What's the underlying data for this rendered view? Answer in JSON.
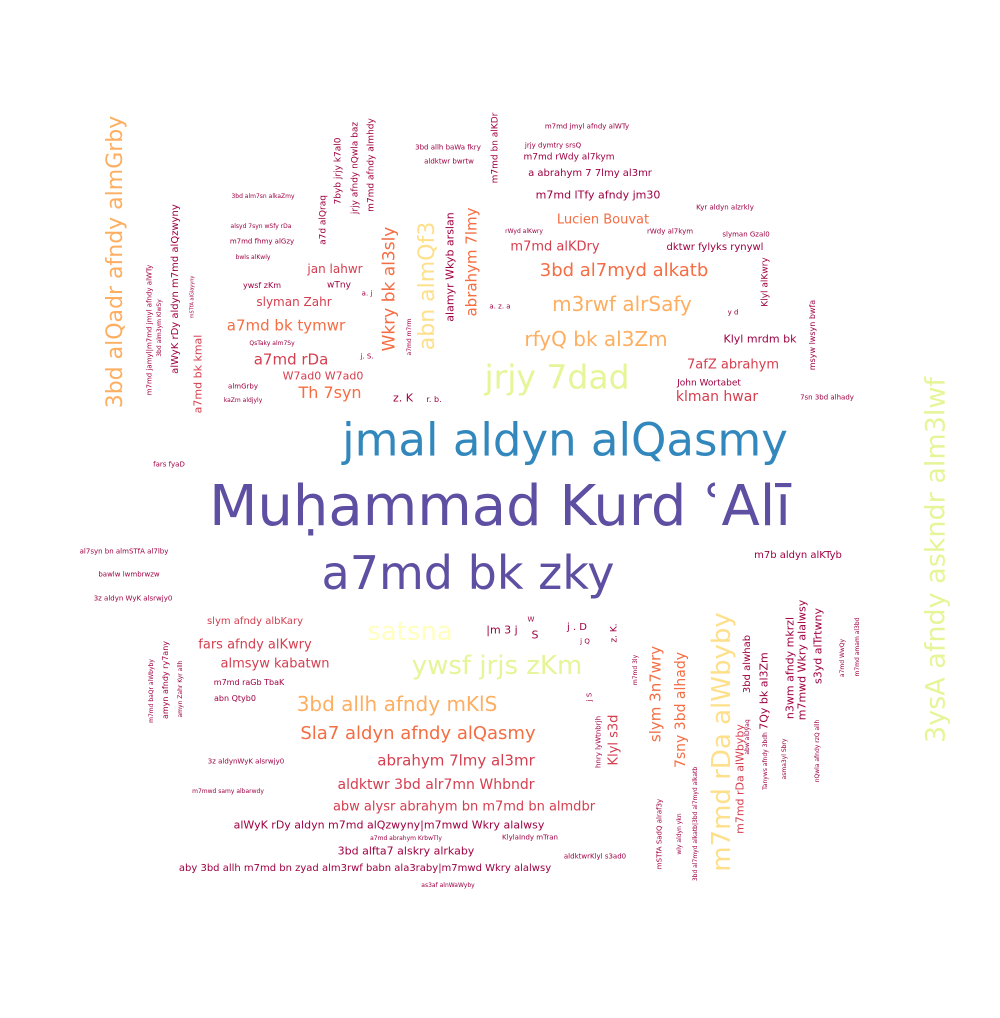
{
  "palette": {
    "dark_maroon": "#9e0142",
    "crimson": "#d53e4f",
    "orange_red": "#f46d43",
    "orange": "#fdae61",
    "light_yellow": "#fee08b",
    "pale_yellow": "#ffffbf",
    "yellow_green": "#e6f598",
    "blue": "#3288bd",
    "indigo": "#5e4fa2"
  },
  "words": [
    {
      "text": "Muḥammad Kurd ʿAlī",
      "color": "indigo"
    },
    {
      "text": "jmal aldyn alQasmy",
      "color": "blue"
    },
    {
      "text": "a7md bk zky",
      "color": "indigo"
    },
    {
      "text": "jrjy 7dad",
      "color": "yellow_green"
    },
    {
      "text": "3ysA afndy askndr alm3lwf",
      "color": "yellow_green"
    },
    {
      "text": "3bd alQadr afndy almGrby",
      "color": "orange"
    },
    {
      "text": "m7md rDa alWbyby",
      "color": "light_yellow"
    },
    {
      "text": "ywsf jrjs zKm",
      "color": "yellow_green"
    },
    {
      "text": "satsna",
      "color": "pale_yellow"
    },
    {
      "text": "abn almQf3",
      "color": "light_yellow"
    },
    {
      "text": "m3rwf alrSafy",
      "color": "orange"
    },
    {
      "text": "rfyQ bk al3Zm",
      "color": "orange"
    },
    {
      "text": "3bd allh afndy mKlS",
      "color": "orange"
    },
    {
      "text": "Sla7 aldyn afndy alQasmy",
      "color": "orange_red"
    },
    {
      "text": "3bd al7myd alkatb",
      "color": "orange_red"
    },
    {
      "text": "Wkry bk al3sly",
      "color": "orange_red"
    },
    {
      "text": "abrahym 7lmy",
      "color": "orange_red"
    },
    {
      "text": "Th 7syn",
      "color": "orange_red"
    },
    {
      "text": "a7md bk tymwr",
      "color": "orange_red"
    },
    {
      "text": "a7md rDa",
      "color": "crimson"
    },
    {
      "text": "slym 3n7wry",
      "color": "orange_red"
    },
    {
      "text": "abrahym 7lmy al3mr",
      "color": "crimson"
    },
    {
      "text": "aldktwr 3bd alr7mn Whbndr",
      "color": "crimson"
    },
    {
      "text": "7sny 3bd alhady",
      "color": "orange_red"
    },
    {
      "text": "Lucien Bouvat",
      "color": "orange_red"
    },
    {
      "text": "m7md alKDry",
      "color": "crimson"
    },
    {
      "text": "fars afndy alKwry",
      "color": "crimson"
    },
    {
      "text": "almsyw kabatwn",
      "color": "crimson"
    },
    {
      "text": "slyman Zahr",
      "color": "crimson"
    },
    {
      "text": "jan lahwr",
      "color": "crimson"
    },
    {
      "text": "Klyl s3d",
      "color": "crimson"
    },
    {
      "text": "7afZ abrahym",
      "color": "crimson"
    },
    {
      "text": "klman hwar",
      "color": "crimson"
    },
    {
      "text": "abw alysr abrahym bn m7md bn almdbr",
      "color": "crimson"
    },
    {
      "text": "alWyK rDy aldyn m7md alQzwyny|m7mwd Wkry alalwsy",
      "color": "dark_maroon"
    },
    {
      "text": "3bd alfta7 alskry alrkaby",
      "color": "dark_maroon"
    },
    {
      "text": "aby 3bd allh m7md bn zyad alm3rwf babn ala3raby|m7mwd Wkry alalwsy",
      "color": "dark_maroon"
    },
    {
      "text": "slym afndy albKary",
      "color": "crimson"
    },
    {
      "text": "W7ad0 W7ad0",
      "color": "crimson"
    },
    {
      "text": "a7md bk kmal",
      "color": "crimson"
    },
    {
      "text": "alamyr Wkyb arslan",
      "color": "dark_maroon"
    },
    {
      "text": "7Qy bk al3Zm",
      "color": "dark_maroon"
    },
    {
      "text": "n3wm afndy mkrzl",
      "color": "dark_maroon"
    },
    {
      "text": "m7mwd Wkry alalwsy",
      "color": "dark_maroon"
    },
    {
      "text": "s3yd alTrtwny",
      "color": "dark_maroon"
    },
    {
      "text": "3bd alwhab",
      "color": "dark_maroon"
    },
    {
      "text": "m7md rDa alWbyby",
      "color": "crimson"
    },
    {
      "text": "Klyl mrdm bk",
      "color": "dark_maroon"
    },
    {
      "text": "dktwr fylyks rynywl",
      "color": "dark_maroon"
    },
    {
      "text": "m7md lTfy afndy jm30",
      "color": "dark_maroon"
    },
    {
      "text": "a abrahym 7 7lmy al3mr",
      "color": "dark_maroon"
    },
    {
      "text": "m7md rWdy al7kym",
      "color": "dark_maroon"
    },
    {
      "text": "m7md bn alKDr",
      "color": "dark_maroon"
    },
    {
      "text": "m7b aldyn alKTyb",
      "color": "dark_maroon"
    },
    {
      "text": "alWyK rDy aldyn m7md alQzwyny",
      "color": "dark_maroon"
    },
    {
      "text": "m7md afndy almhdy",
      "color": "dark_maroon"
    },
    {
      "text": "jrjy afndy nQwla baz",
      "color": "dark_maroon"
    },
    {
      "text": "7byb jrjy k7al0",
      "color": "dark_maroon"
    },
    {
      "text": "a7d alQraq",
      "color": "dark_maroon"
    },
    {
      "text": "wTny",
      "color": "dark_maroon"
    },
    {
      "text": "John Wortabet",
      "color": "dark_maroon"
    },
    {
      "text": "m7md jmyl afndy alWTy",
      "color": "dark_maroon"
    },
    {
      "text": "jrjy dymtry srsQ",
      "color": "dark_maroon"
    },
    {
      "text": "3bd allh baWa fkry",
      "color": "dark_maroon"
    },
    {
      "text": "aldktwr bwrtw",
      "color": "dark_maroon"
    },
    {
      "text": "Kyr aldyn alzrkly",
      "color": "dark_maroon"
    },
    {
      "text": "rWdy al7kym",
      "color": "dark_maroon"
    },
    {
      "text": "rWyd alKwry",
      "color": "dark_maroon"
    },
    {
      "text": "slyman Gzal0",
      "color": "dark_maroon"
    },
    {
      "text": "Klyl alKwry",
      "color": "dark_maroon"
    },
    {
      "text": "msyw lwsyn bwfa",
      "color": "dark_maroon"
    },
    {
      "text": "7sn 3bd alhady",
      "color": "dark_maroon"
    },
    {
      "text": "3bd alm7sn alkaZmy",
      "color": "dark_maroon"
    },
    {
      "text": "alsyd 7syn wSfy rDa",
      "color": "dark_maroon"
    },
    {
      "text": "m7md fhmy alGzy",
      "color": "dark_maroon"
    },
    {
      "text": "bwls alKwly",
      "color": "dark_maroon"
    },
    {
      "text": "ywsf zKm",
      "color": "dark_maroon"
    },
    {
      "text": "QsTaky alm7Sy",
      "color": "dark_maroon"
    },
    {
      "text": "almGrby",
      "color": "dark_maroon"
    },
    {
      "text": "kaZm aldjyly",
      "color": "dark_maroon"
    },
    {
      "text": "fars fyaD",
      "color": "dark_maroon"
    },
    {
      "text": "al7syn bn almSTfA al7lby",
      "color": "dark_maroon"
    },
    {
      "text": "bawlw lwmbrwzw",
      "color": "dark_maroon"
    },
    {
      "text": "3z aldyn WyK alsrwjy0",
      "color": "dark_maroon"
    },
    {
      "text": "m7md raGb TbaK",
      "color": "dark_maroon"
    },
    {
      "text": "abn Qtyb0",
      "color": "dark_maroon"
    },
    {
      "text": "3z aldynWyK alsrwjy0",
      "color": "dark_maroon"
    },
    {
      "text": "m7mwd samy albarwdy",
      "color": "dark_maroon"
    },
    {
      "text": "a7md abrahym KrbwTly",
      "color": "dark_maroon"
    },
    {
      "text": "KlylaIndy mTran",
      "color": "dark_maroon"
    },
    {
      "text": "aldktwrKlyl s3ad0",
      "color": "dark_maroon"
    },
    {
      "text": "as3af alnWaWyby",
      "color": "dark_maroon"
    },
    {
      "text": "m7md jamyl|m7md jmyl afndy alWTy",
      "color": "dark_maroon"
    },
    {
      "text": "3bd alm3ym KlwSy",
      "color": "dark_maroon"
    },
    {
      "text": "mSTfA alGlayyny",
      "color": "dark_maroon"
    },
    {
      "text": "m7md baQr alWbyby",
      "color": "dark_maroon"
    },
    {
      "text": "amyn afndy ry7any",
      "color": "dark_maroon"
    },
    {
      "text": "amyn Zahr Kyr allh",
      "color": "dark_maroon"
    },
    {
      "text": "hnry lyWtnbrjh",
      "color": "dark_maroon"
    },
    {
      "text": "mSTfA SadQ alraf3y",
      "color": "dark_maroon"
    },
    {
      "text": "wly aldyn ykn",
      "color": "dark_maroon"
    },
    {
      "text": "3bd al7myd alkatb|3bd al7myd alkatb",
      "color": "dark_maroon"
    },
    {
      "text": "abw alDyaq",
      "color": "dark_maroon"
    },
    {
      "text": "Tanyws afndy 3bdh",
      "color": "dark_maroon"
    },
    {
      "text": "asma3yl Sbry",
      "color": "dark_maroon"
    },
    {
      "text": "nQwla afndy rzQ allh",
      "color": "dark_maroon"
    },
    {
      "text": "a7md WwQy",
      "color": "dark_maroon"
    },
    {
      "text": "m7md amam al3bd",
      "color": "dark_maroon"
    },
    {
      "text": "m7md 3ly",
      "color": "dark_maroon"
    },
    {
      "text": "a7md m7rm",
      "color": "dark_maroon"
    },
    {
      "text": "|m 3 j",
      "color": "dark_maroon"
    },
    {
      "text": "S",
      "color": "dark_maroon"
    },
    {
      "text": "W",
      "color": "dark_maroon"
    },
    {
      "text": "j . D",
      "color": "dark_maroon"
    },
    {
      "text": "j Q",
      "color": "dark_maroon"
    },
    {
      "text": "z. K.",
      "color": "dark_maroon"
    },
    {
      "text": "j S",
      "color": "dark_maroon"
    },
    {
      "text": "z. K",
      "color": "dark_maroon"
    },
    {
      "text": "r. b.",
      "color": "dark_maroon"
    },
    {
      "text": "j. S.",
      "color": "dark_maroon"
    },
    {
      "text": "a. j",
      "color": "dark_maroon"
    },
    {
      "text": "a. z. a",
      "color": "dark_maroon"
    },
    {
      "text": "y d",
      "color": "dark_maroon"
    }
  ]
}
